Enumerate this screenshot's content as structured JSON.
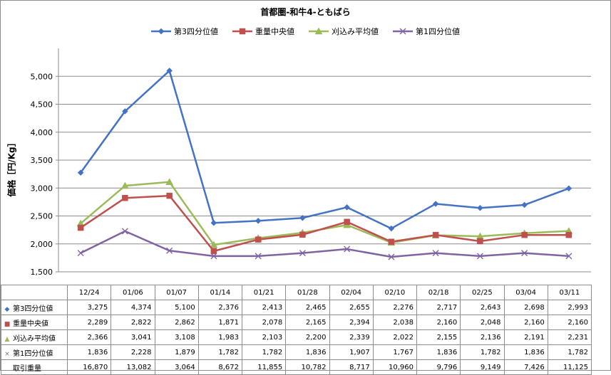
{
  "chart_data": {
    "type": "line",
    "title": "首都圏-和牛4-ともばら",
    "ylabel": "価格［円/Kg］",
    "xlabel": "",
    "ylim": [
      1500,
      5500
    ],
    "yticks": [
      1500,
      2000,
      2500,
      3000,
      3500,
      4000,
      4500,
      5000
    ],
    "ytick_labels": [
      "1,500",
      "2,000",
      "2,500",
      "3,000",
      "3,500",
      "4,000",
      "4,500",
      "5,000"
    ],
    "grid": true,
    "legend_position": "top",
    "categories": [
      "12/24",
      "01/06",
      "01/07",
      "01/14",
      "01/21",
      "01/28",
      "02/04",
      "02/10",
      "02/18",
      "02/25",
      "03/04",
      "03/11"
    ],
    "series": [
      {
        "name": "第3四分位値",
        "color": "#4472c4",
        "marker": "diamond",
        "marker_glyph": "◆",
        "values": [
          3275,
          4374,
          5100,
          2376,
          2413,
          2465,
          2655,
          2276,
          2717,
          2643,
          2698,
          2993
        ],
        "labels": [
          "3,275",
          "4,374",
          "5,100",
          "2,376",
          "2,413",
          "2,465",
          "2,655",
          "2,276",
          "2,717",
          "2,643",
          "2,698",
          "2,993"
        ]
      },
      {
        "name": "重量中央値",
        "color": "#c0504d",
        "marker": "square",
        "marker_glyph": "■",
        "values": [
          2289,
          2822,
          2862,
          1871,
          2078,
          2165,
          2394,
          2038,
          2160,
          2048,
          2160,
          2160
        ],
        "labels": [
          "2,289",
          "2,822",
          "2,862",
          "1,871",
          "2,078",
          "2,165",
          "2,394",
          "2,038",
          "2,160",
          "2,048",
          "2,160",
          "2,160"
        ]
      },
      {
        "name": "刈込み平均値",
        "color": "#9bbb59",
        "marker": "triangle",
        "marker_glyph": "▲",
        "values": [
          2366,
          3041,
          3108,
          1983,
          2103,
          2200,
          2339,
          2022,
          2155,
          2136,
          2191,
          2231
        ],
        "labels": [
          "2,366",
          "3,041",
          "3,108",
          "1,983",
          "2,103",
          "2,200",
          "2,339",
          "2,022",
          "2,155",
          "2,136",
          "2,191",
          "2,231"
        ]
      },
      {
        "name": "第1四分位値",
        "color": "#8064a2",
        "marker": "x",
        "marker_glyph": "×",
        "values": [
          1836,
          2228,
          1879,
          1782,
          1782,
          1836,
          1907,
          1767,
          1836,
          1782,
          1836,
          1782
        ],
        "labels": [
          "1,836",
          "2,228",
          "1,879",
          "1,782",
          "1,782",
          "1,836",
          "1,907",
          "1,767",
          "1,836",
          "1,782",
          "1,836",
          "1,782"
        ]
      }
    ],
    "table_extra_rows": [
      {
        "name": "取引重量",
        "labels": [
          "16,870",
          "13,082",
          "3,064",
          "8,672",
          "11,855",
          "10,782",
          "8,717",
          "10,960",
          "9,796",
          "9,149",
          "7,426",
          "11,125"
        ]
      }
    ]
  }
}
